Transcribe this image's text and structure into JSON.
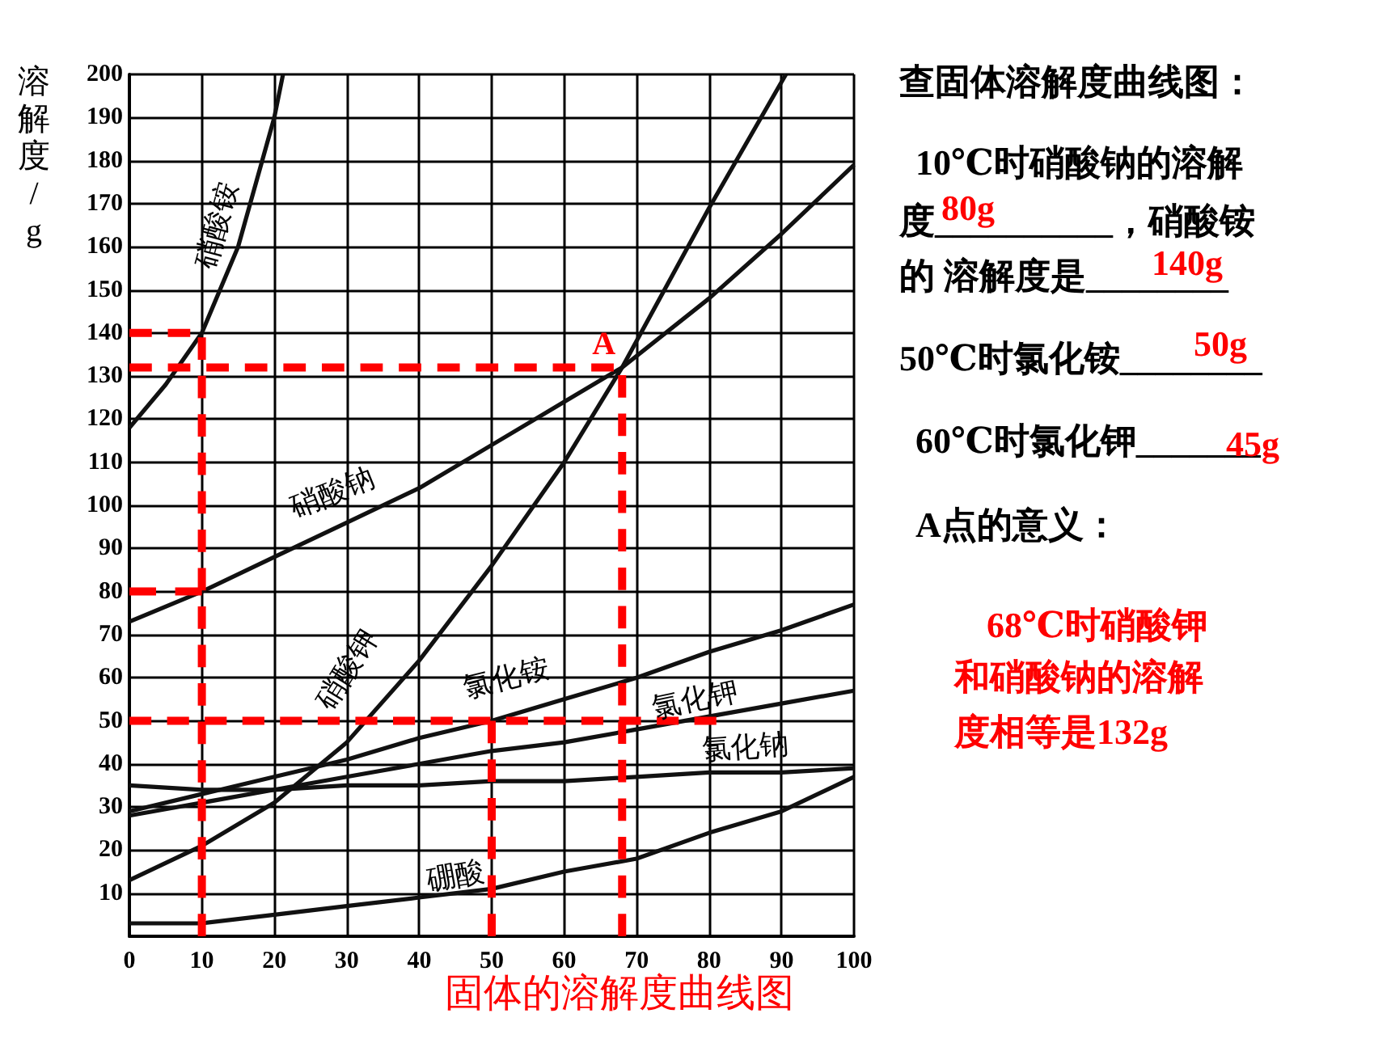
{
  "chart_data": {
    "type": "line",
    "title": "固体的溶解度曲线图",
    "ylabel": "溶解度/g",
    "xlim": [
      0,
      100
    ],
    "xticks": [
      0,
      10,
      20,
      30,
      40,
      50,
      60,
      70,
      80,
      90,
      100
    ],
    "ylim": [
      0,
      200
    ],
    "yticks": [
      {
        "value": 0,
        "label": null
      },
      10,
      20,
      30,
      40,
      50,
      60,
      70,
      80,
      90,
      100,
      110,
      120,
      130,
      140,
      150,
      160,
      170,
      180,
      190,
      200
    ],
    "grid": true,
    "legend": false,
    "marker": "none",
    "line_style": "solid",
    "series": [
      {
        "name": "硝酸铵",
        "color": "#111111",
        "x": [
          0,
          5,
          10,
          15,
          20,
          21.2
        ],
        "values": [
          118,
          128,
          140,
          160,
          190,
          200
        ]
      },
      {
        "name": "硝酸钠",
        "color": "#111111",
        "x": [
          0,
          10,
          20,
          30,
          40,
          50,
          60,
          68,
          80,
          90,
          100
        ],
        "values": [
          73,
          80,
          88,
          96,
          104,
          114,
          124,
          132,
          148,
          163,
          179
        ]
      },
      {
        "name": "硝酸钾",
        "color": "#111111",
        "x": [
          0,
          10,
          20,
          30,
          40,
          50,
          60,
          68,
          80,
          90.6
        ],
        "values": [
          13,
          21,
          31,
          45,
          64,
          86,
          110,
          132,
          169,
          200
        ]
      },
      {
        "name": "氯化铵",
        "color": "#111111",
        "x": [
          0,
          10,
          20,
          30,
          40,
          50,
          60,
          70,
          80,
          90,
          100
        ],
        "values": [
          29,
          33,
          37,
          41,
          46,
          50,
          55,
          60,
          66,
          71,
          77
        ]
      },
      {
        "name": "氯化钾",
        "color": "#111111",
        "x": [
          0,
          10,
          20,
          30,
          40,
          50,
          60,
          70,
          80,
          90,
          100
        ],
        "values": [
          28,
          31,
          34,
          37,
          40,
          43,
          45,
          48,
          51,
          54,
          57
        ]
      },
      {
        "name": "氯化钠",
        "color": "#111111",
        "x": [
          0,
          10,
          20,
          30,
          40,
          50,
          60,
          70,
          80,
          90,
          100
        ],
        "values": [
          35,
          34,
          34,
          35,
          35,
          36,
          36,
          37,
          38,
          38,
          39
        ]
      },
      {
        "name": "硼酸",
        "color": "#111111",
        "x": [
          0,
          10,
          20,
          30,
          40,
          50,
          60,
          70,
          80,
          90,
          100
        ],
        "values": [
          3,
          3,
          5,
          7,
          9,
          11,
          15,
          18,
          24,
          29,
          37
        ]
      },
      {
        "color": "#ff0000",
        "line_style": "dashed",
        "x": [
          0,
          10,
          10
        ],
        "values": [
          140,
          140,
          0
        ]
      },
      {
        "color": "#ff0000",
        "line_style": "dashed",
        "x": [
          0,
          10
        ],
        "values": [
          80,
          80
        ]
      },
      {
        "color": "#ff0000",
        "line_style": "dashed",
        "x": [
          0,
          68,
          68
        ],
        "values": [
          132,
          132,
          0
        ]
      },
      {
        "color": "#ff0000",
        "line_style": "dashed",
        "x": [
          0,
          81
        ],
        "values": [
          50,
          50
        ]
      },
      {
        "color": "#ff0000",
        "line_style": "dashed",
        "x": [
          50,
          50
        ],
        "values": [
          50,
          0
        ]
      }
    ],
    "annotations": [
      {
        "text": "A",
        "x": 68,
        "y": 132
      },
      "查固体溶解度曲线图：",
      "10℃时硝酸钠的溶解",
      "度__________，硝酸铵",
      "的 溶解度是________",
      "80g",
      "140g",
      "50℃时氯化铵________",
      "50g",
      "60℃时氯化钾_______",
      "45g",
      "A点的意义：",
      "68℃时硝酸钾",
      "和硝酸钠的溶解",
      "度相等是132g"
    ]
  }
}
